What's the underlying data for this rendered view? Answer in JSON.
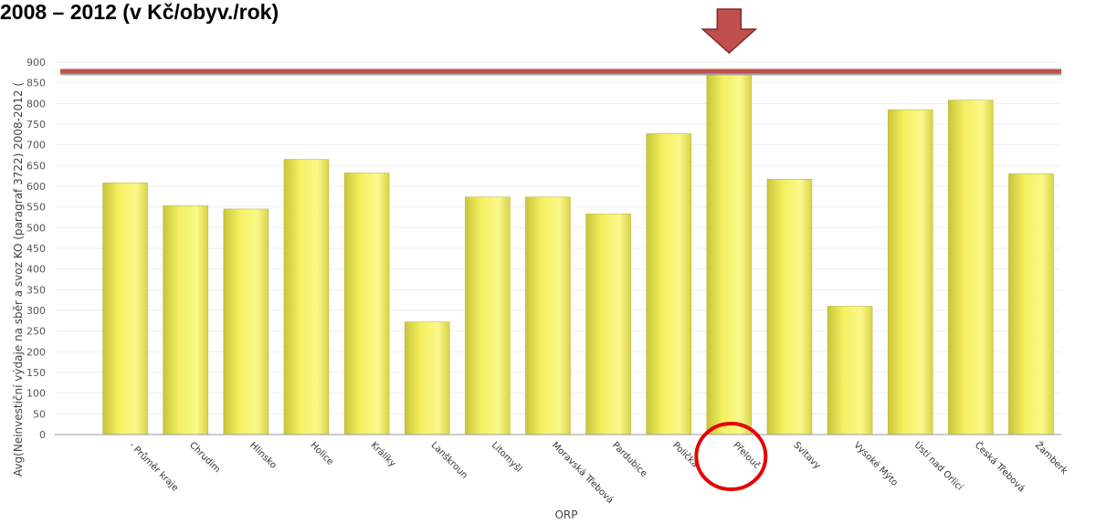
{
  "page": {
    "title": "2008 – 2012 (v Kč/obyv./rok)"
  },
  "colors": {
    "bar": "#f4f060",
    "highlight_line": "#c0504d",
    "arrow": "#c0504d",
    "circle": "#e60000",
    "grid": "#eeeeee"
  },
  "chart_data": {
    "type": "bar",
    "xlabel": "ORP",
    "ylabel": "Avg(Neinvestiční výdaje na sběr a svoz KO (paragraf 3722) 2008-2012 (",
    "ylim": [
      0,
      900
    ],
    "yticks": [
      0,
      50,
      100,
      150,
      200,
      250,
      300,
      350,
      400,
      450,
      500,
      550,
      600,
      650,
      700,
      750,
      800,
      850,
      900
    ],
    "grid": true,
    "categories": [
      "- Průměr kraje",
      "Chrudim",
      "Hlinsko",
      "Holice",
      "Králíky",
      "Lanškroun",
      "Litomyšl",
      "Moravská Třebová",
      "Pardubice",
      "Polička",
      "Přelouč",
      "Svitavy",
      "Vysoké Mýto",
      "Ústí nad Orlicí",
      "Česká Třebová",
      "Žamberk"
    ],
    "values": [
      608,
      553,
      545,
      665,
      632,
      272,
      574,
      574,
      533,
      727,
      878,
      617,
      310,
      785,
      808,
      630
    ],
    "reference_line": {
      "value": 878
    },
    "highlighted_category": "Přelouč"
  }
}
